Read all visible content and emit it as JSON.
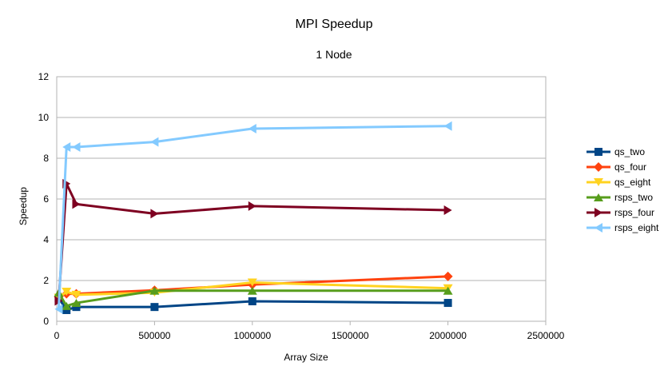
{
  "chart_data": {
    "type": "line",
    "title": "MPI Speedup",
    "subtitle": "1 Node",
    "xlabel": "Array Size",
    "ylabel": "Speedup",
    "xlim": [
      0,
      2500000
    ],
    "ylim": [
      0,
      12
    ],
    "xticks": [
      0,
      500000,
      1000000,
      1500000,
      2000000,
      2500000
    ],
    "xtick_labels": [
      "0",
      "500000",
      "1000000",
      "1500000",
      "2000000",
      "2500000"
    ],
    "yticks": [
      0,
      2,
      4,
      6,
      8,
      10,
      12
    ],
    "ytick_labels": [
      "0",
      "2",
      "4",
      "6",
      "8",
      "10",
      "12"
    ],
    "grid": "horizontal",
    "legend_position": "right",
    "x": [
      10000,
      50000,
      100000,
      500000,
      1000000,
      2000000
    ],
    "series": [
      {
        "name": "qs_two",
        "color": "#004586",
        "marker": "square",
        "values": [
          1.15,
          0.55,
          0.7,
          0.7,
          0.98,
          0.9
        ]
      },
      {
        "name": "qs_four",
        "color": "#ff420e",
        "marker": "diamond",
        "values": [
          1.2,
          1.35,
          1.35,
          1.52,
          1.8,
          2.2
        ]
      },
      {
        "name": "qs_eight",
        "color": "#ffd320",
        "marker": "triangle-down",
        "values": [
          1.15,
          1.45,
          1.3,
          1.4,
          1.9,
          1.62
        ]
      },
      {
        "name": "rsps_two",
        "color": "#579d1c",
        "marker": "triangle-up",
        "values": [
          1.4,
          0.75,
          0.9,
          1.5,
          1.5,
          1.5
        ]
      },
      {
        "name": "rsps_four",
        "color": "#7e0021",
        "marker": "triangle-right",
        "values": [
          1.0,
          6.75,
          5.75,
          5.28,
          5.65,
          5.45
        ]
      },
      {
        "name": "rsps_eight",
        "color": "#83caff",
        "marker": "triangle-left",
        "values": [
          0.6,
          8.55,
          8.55,
          8.8,
          9.45,
          9.58
        ]
      }
    ]
  }
}
